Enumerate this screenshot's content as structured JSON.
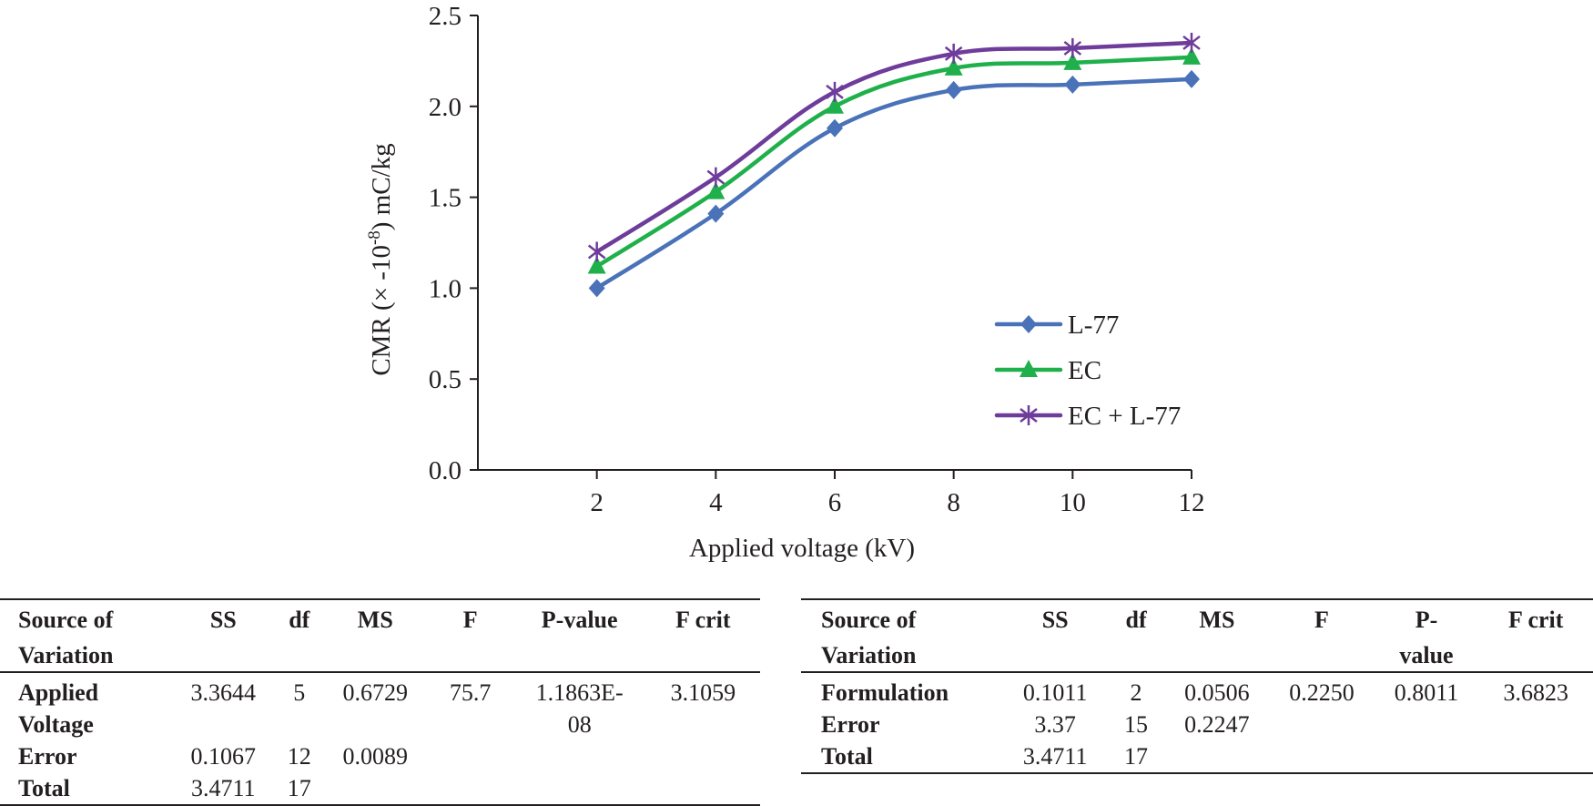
{
  "chart_data": {
    "type": "line",
    "title": "",
    "xlabel": "Applied voltage (kV)",
    "ylabel_main": "CMR (× -10",
    "ylabel_sup": "-8",
    "ylabel_tail": ") mC/kg",
    "x": [
      2,
      4,
      6,
      8,
      10,
      12
    ],
    "x_tick_labels": [
      "2",
      "4",
      "6",
      "8",
      "10",
      "12"
    ],
    "xlim": [
      0,
      12
    ],
    "ylim": [
      0,
      2.5
    ],
    "y_ticks": [
      0.0,
      0.5,
      1.0,
      1.5,
      2.0,
      2.5
    ],
    "y_tick_labels": [
      "0.0",
      "0.5",
      "1.0",
      "1.5",
      "2.0",
      "2.5"
    ],
    "grid": false,
    "smooth": true,
    "legend_position": "bottom-right",
    "series": [
      {
        "name": "L-77",
        "marker": "diamond",
        "color": "#4a72b8",
        "values": [
          1.0,
          1.41,
          1.88,
          2.09,
          2.12,
          2.15
        ]
      },
      {
        "name": "EC",
        "marker": "triangle",
        "color": "#1fb04b",
        "values": [
          1.12,
          1.53,
          2.0,
          2.21,
          2.24,
          2.27
        ]
      },
      {
        "name": "EC + L-77",
        "marker": "asterisk",
        "color": "#6e3c9a",
        "values": [
          1.2,
          1.61,
          2.08,
          2.29,
          2.32,
          2.35
        ]
      }
    ]
  },
  "tables": {
    "left": {
      "headers": [
        [
          "Source of",
          "SS",
          "df",
          "MS",
          "F",
          "P-value",
          "F crit"
        ],
        [
          "Variation",
          "",
          "",
          "",
          "",
          "",
          ""
        ]
      ],
      "rows": [
        [
          "Applied",
          "3.3644",
          "5",
          "0.6729",
          "75.7",
          "1.1863E-",
          "3.1059"
        ],
        [
          "Voltage",
          "",
          "",
          "",
          "",
          "08",
          ""
        ],
        [
          "Error",
          "0.1067",
          "12",
          "0.0089",
          "",
          "",
          ""
        ],
        [
          "Total",
          "3.4711",
          "17",
          "",
          "",
          "",
          ""
        ]
      ]
    },
    "right": {
      "headers": [
        [
          "Source of",
          "SS",
          "df",
          "MS",
          "F",
          "P-",
          "F crit"
        ],
        [
          "Variation",
          "",
          "",
          "",
          "",
          "value",
          ""
        ]
      ],
      "rows": [
        [
          "Formulation",
          "0.1011",
          "2",
          "0.0506",
          "0.2250",
          "0.8011",
          "3.6823"
        ],
        [
          "Error",
          "3.37",
          "15",
          "0.2247",
          "",
          "",
          ""
        ],
        [
          "Total",
          "3.4711",
          "17",
          "",
          "",
          "",
          ""
        ]
      ]
    }
  }
}
